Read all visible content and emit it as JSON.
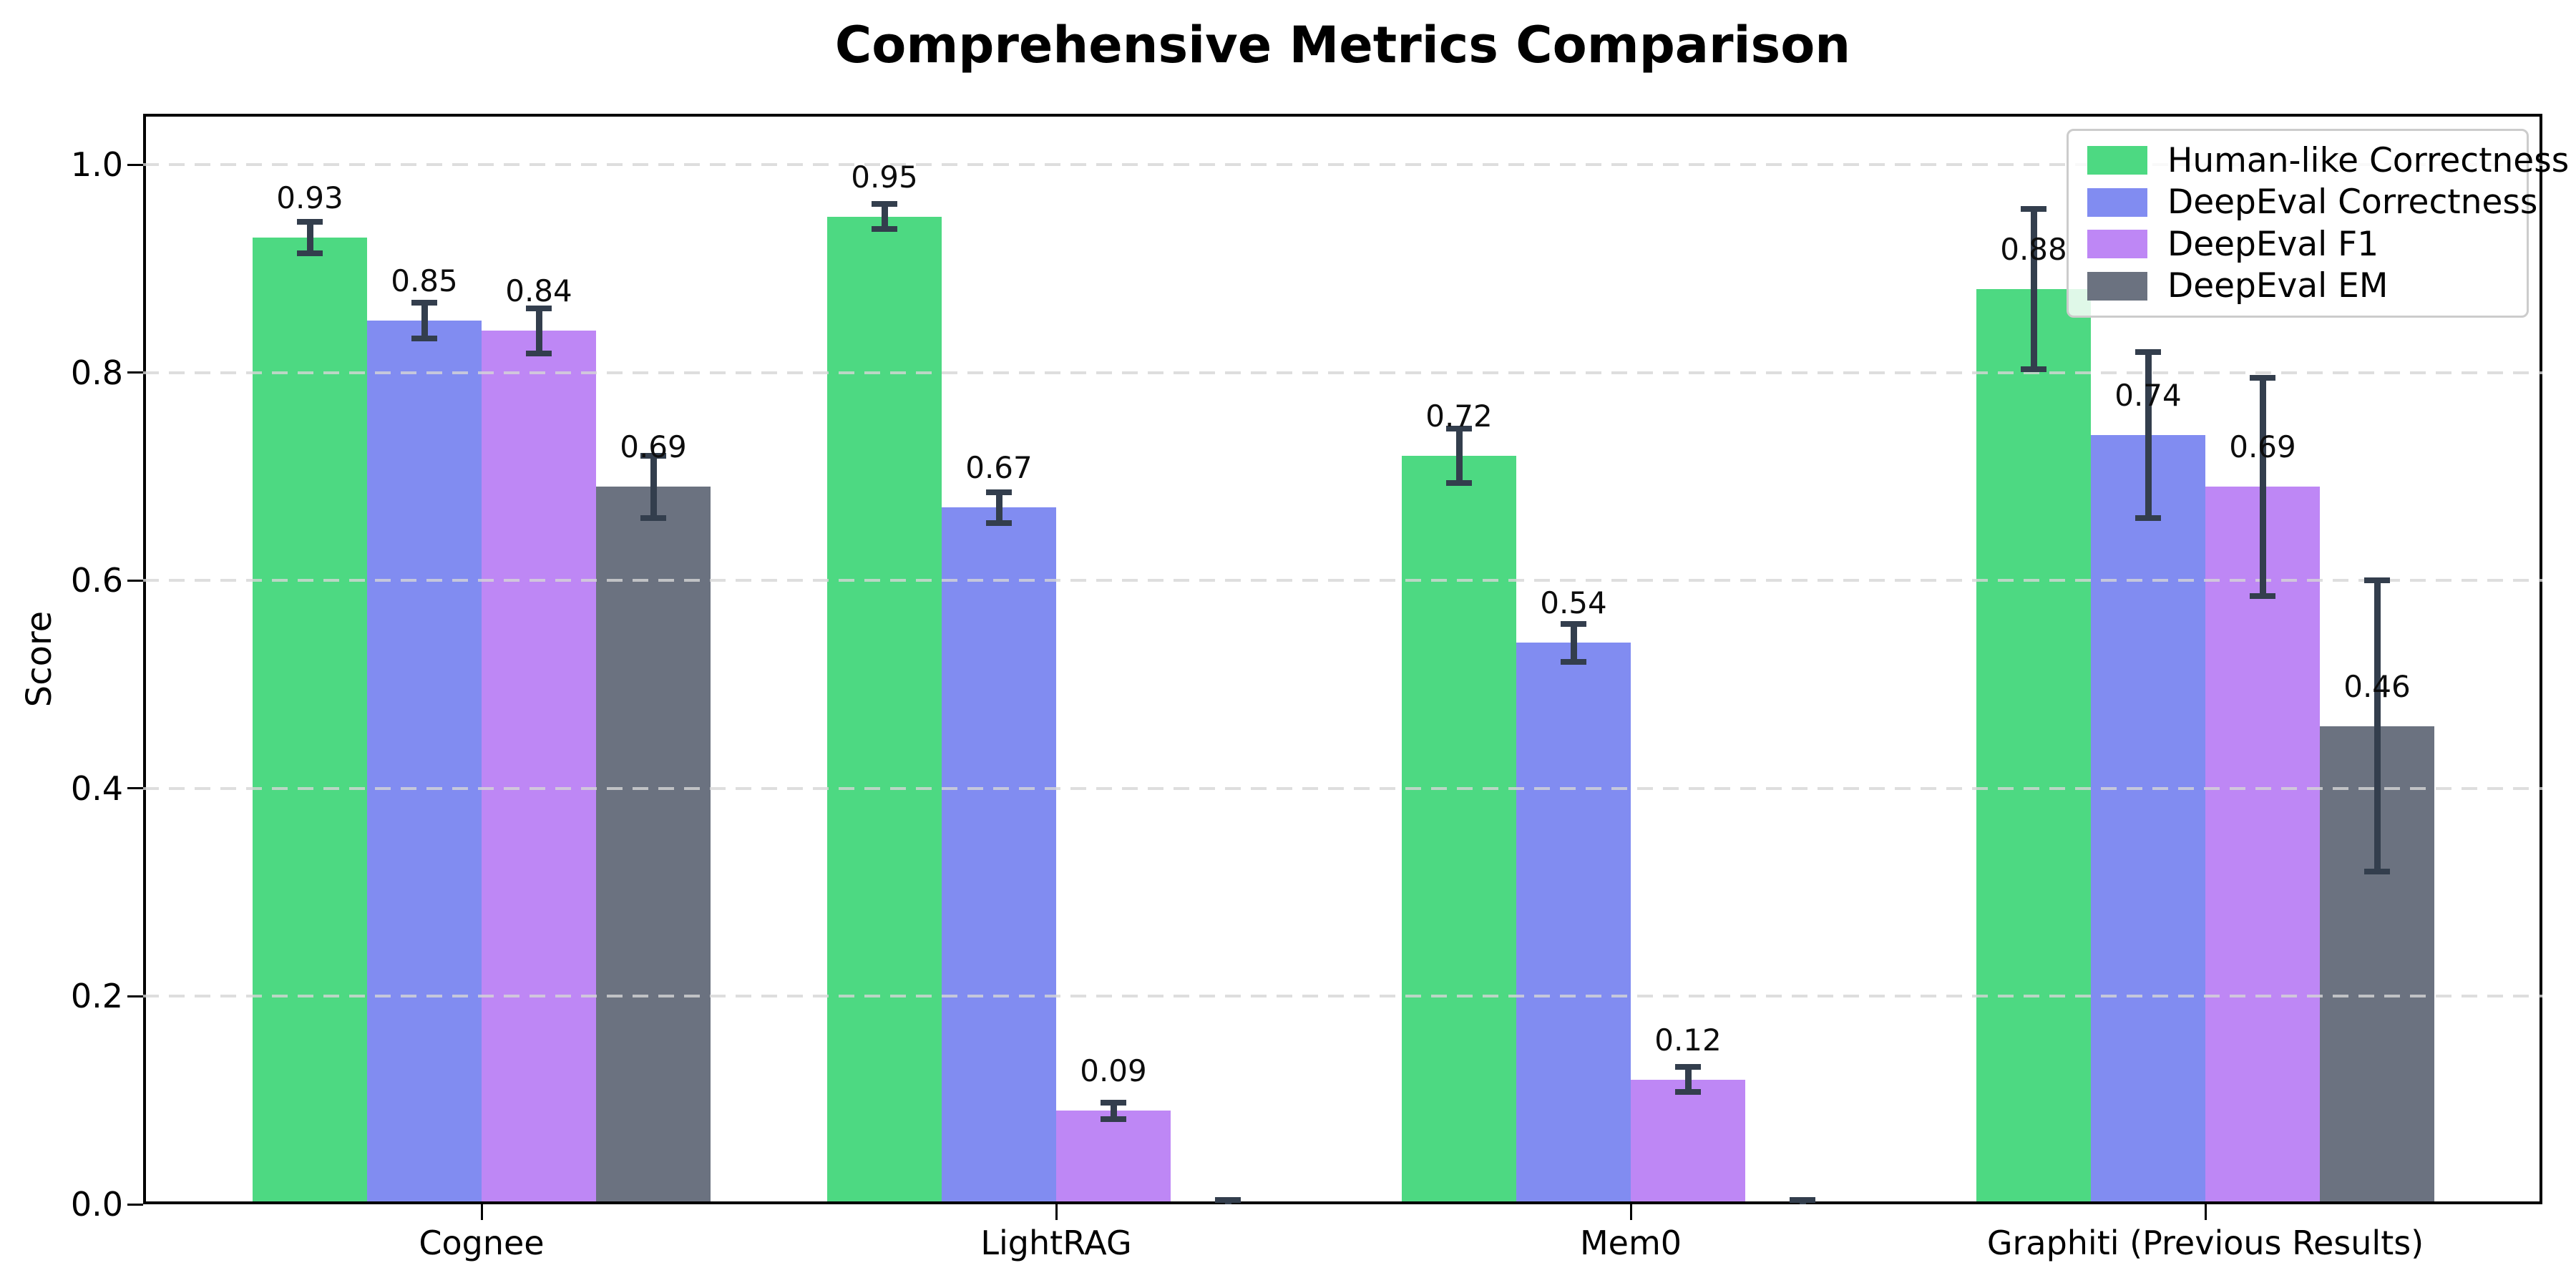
{
  "chart_data": {
    "type": "bar",
    "title": "Comprehensive Metrics Comparison",
    "ylabel": "Score",
    "xlabel": "",
    "categories": [
      "Cognee",
      "LightRAG",
      "Mem0",
      "Graphiti (Previous Results)"
    ],
    "yticks": [
      0.0,
      0.2,
      0.4,
      0.6,
      0.8,
      1.0
    ],
    "ytick_labels": [
      "0.0",
      "0.2",
      "0.4",
      "0.6",
      "0.8",
      "1.0"
    ],
    "ylim": [
      0,
      1.05
    ],
    "grid": "horizontal-dashed-over-bars",
    "legend_position": "upper-right",
    "series": [
      {
        "name": "Human-like Correctness",
        "color": "#4dd982",
        "values": [
          0.93,
          0.95,
          0.72,
          0.88
        ],
        "errors": [
          0.015,
          0.012,
          0.026,
          0.077
        ],
        "labels": [
          "0.93",
          "0.95",
          "0.72",
          "0.88"
        ]
      },
      {
        "name": "DeepEval Correctness",
        "color": "#818cf1",
        "values": [
          0.85,
          0.67,
          0.54,
          0.74
        ],
        "errors": [
          0.017,
          0.015,
          0.018,
          0.08
        ],
        "labels": [
          "0.85",
          "0.67",
          "0.54",
          "0.74"
        ]
      },
      {
        "name": "DeepEval F1",
        "color": "#be87f5",
        "values": [
          0.84,
          0.09,
          0.12,
          0.69
        ],
        "errors": [
          0.022,
          0.008,
          0.012,
          0.105
        ],
        "labels": [
          "0.84",
          "0.09",
          "0.12",
          "0.69"
        ]
      },
      {
        "name": "DeepEval EM",
        "color": "#6b7280",
        "values": [
          0.69,
          0.0,
          0.0,
          0.46
        ],
        "errors": [
          0.03,
          0.004,
          0.004,
          0.14
        ],
        "labels": [
          "0.69",
          null,
          null,
          "0.46"
        ]
      }
    ],
    "colors": {
      "error_bar": "#333e4d",
      "gridline": "#d6d6d6",
      "axis": "#000000",
      "legend_border": "#cccccc",
      "background": "#ffffff"
    }
  }
}
